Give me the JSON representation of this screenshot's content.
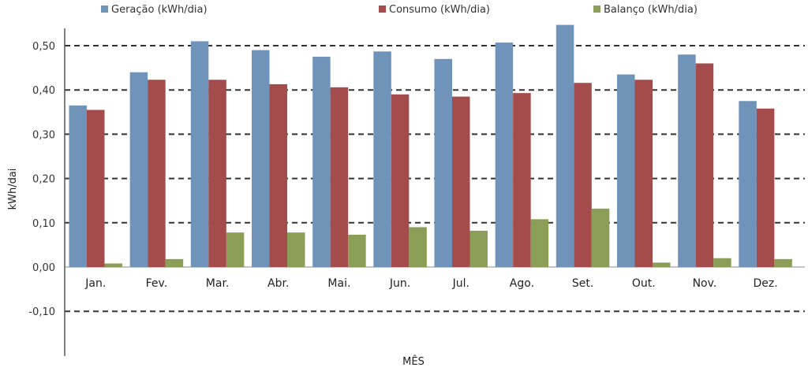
{
  "chart_data": {
    "type": "bar",
    "categories": [
      "Jan.",
      "Fev.",
      "Mar.",
      "Abr.",
      "Mai.",
      "Jun.",
      "Jul.",
      "Ago.",
      "Set.",
      "Out.",
      "Nov.",
      "Dez."
    ],
    "series": [
      {
        "name": "Geração (kWh/dia)",
        "color": "#7093b9",
        "values": [
          0.365,
          0.44,
          0.51,
          0.49,
          0.475,
          0.487,
          0.47,
          0.507,
          0.547,
          0.435,
          0.48,
          0.375
        ]
      },
      {
        "name": "Consumo (kWh/dia)",
        "color": "#a44c4c",
        "values": [
          0.355,
          0.423,
          0.423,
          0.413,
          0.406,
          0.39,
          0.385,
          0.393,
          0.416,
          0.423,
          0.46,
          0.358
        ]
      },
      {
        "name": "Balanço (kWh/dia)",
        "color": "#8b9e57",
        "values": [
          0.008,
          0.018,
          0.078,
          0.078,
          0.073,
          0.09,
          0.082,
          0.108,
          0.132,
          0.01,
          0.02,
          0.018
        ]
      }
    ],
    "yticks": [
      "-0,10",
      "0,00",
      "0,10",
      "0,20",
      "0,30",
      "0,40",
      "0,50"
    ],
    "ytick_values": [
      -0.1,
      0.0,
      0.1,
      0.2,
      0.3,
      0.4,
      0.5
    ],
    "ylim": [
      -0.18,
      0.55
    ],
    "ylabel": "kWh/dai",
    "xlabel": "MÊS",
    "grid": "dashed-horizontal",
    "legend_position": "top"
  }
}
